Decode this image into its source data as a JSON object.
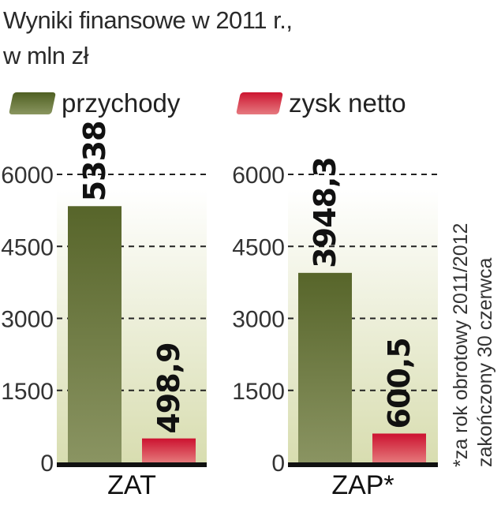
{
  "title_line1": "Wyniki finansowe w 2011 r.,",
  "title_line2": "w mln zł",
  "legend": [
    {
      "label": "przychody",
      "color": "#5a6b2a"
    },
    {
      "label": "zysk netto",
      "color": "#d21f3c"
    }
  ],
  "footnote_line1": "*za rok obrotowy 2011/2012",
  "footnote_line2": "zakończony 30 czerwca",
  "chart_data": [
    {
      "type": "bar",
      "category": "ZAT",
      "ylim": [
        0,
        6000
      ],
      "yticks": [
        "0",
        "1500",
        "3000",
        "4500",
        "6000"
      ],
      "grid": true,
      "series": [
        {
          "name": "przychody",
          "value": 5338,
          "label": "5338"
        },
        {
          "name": "zysk netto",
          "value": 498.9,
          "label": "498,9"
        }
      ]
    },
    {
      "type": "bar",
      "category": "ZAP*",
      "ylim": [
        0,
        6000
      ],
      "yticks": [
        "0",
        "1500",
        "3000",
        "4500",
        "6000"
      ],
      "grid": true,
      "series": [
        {
          "name": "przychody",
          "value": 3948.3,
          "label": "3948,3"
        },
        {
          "name": "zysk netto",
          "value": 600.5,
          "label": "600,5"
        }
      ]
    }
  ]
}
